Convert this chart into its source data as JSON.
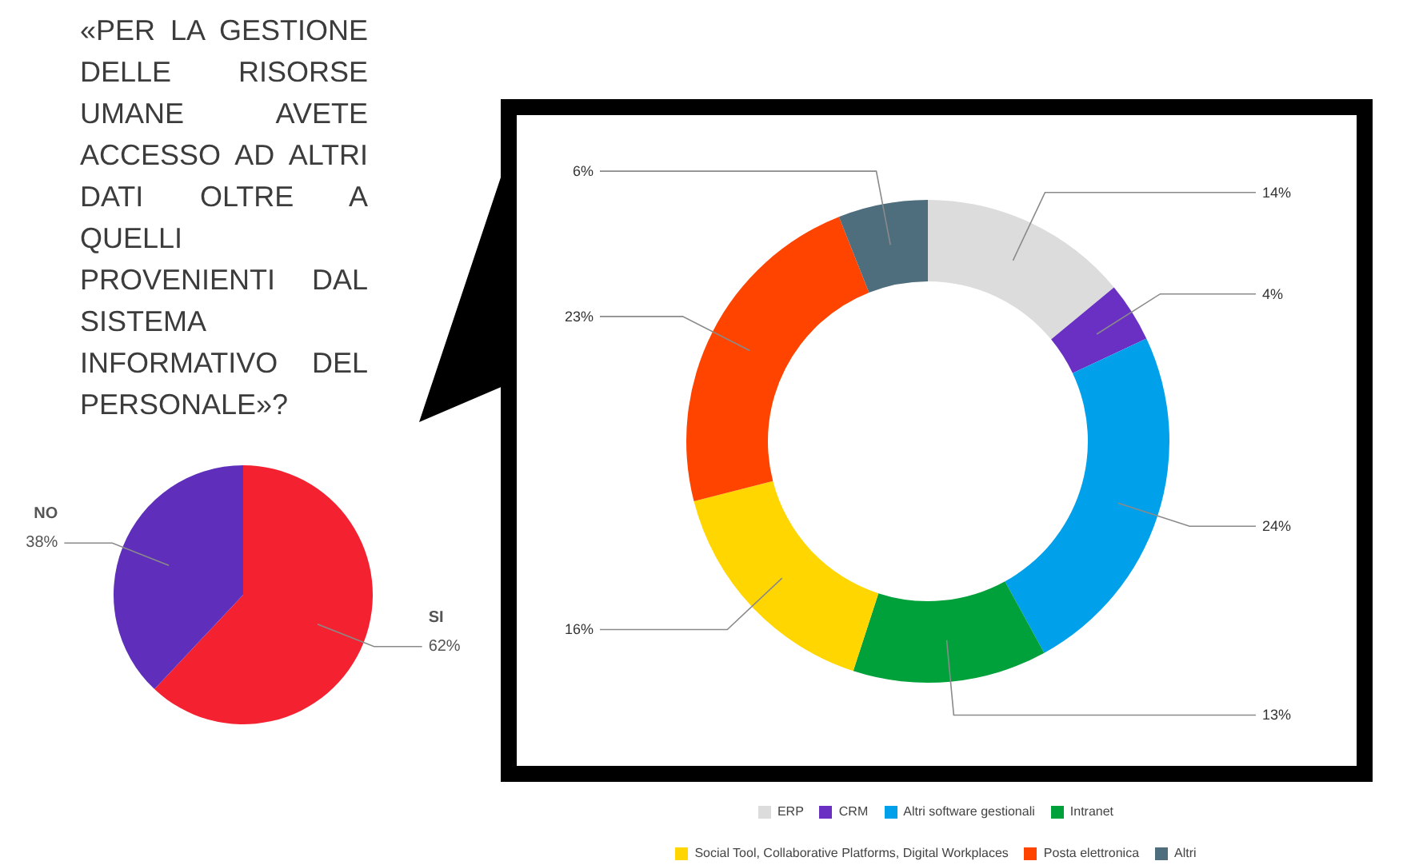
{
  "chart_data": [
    {
      "type": "pie",
      "title": "«PER LA GESTIONE DELLE RISORSE UMANE AVETE ACCESSO AD ALTRI DATI OLTRE A QUELLI PROVENIENTI DAL SISTEMA INFORMATIVO DEL PERSONALE»?",
      "categories": [
        "SI",
        "NO"
      ],
      "values": [
        62,
        38
      ],
      "colors": [
        "#f42231",
        "#5f2fbb"
      ],
      "value_labels": [
        "62%",
        "38%"
      ]
    },
    {
      "type": "donut",
      "categories": [
        "ERP",
        "CRM",
        "Altri software gestionali",
        "Intranet",
        "Social Tool, Collaborative Platforms, Digital Workplaces",
        "Posta elettronica",
        "Altri"
      ],
      "values": [
        14,
        4,
        24,
        13,
        16,
        23,
        6
      ],
      "colors": [
        "#dcdcdc",
        "#6930c3",
        "#00a0ea",
        "#00a13a",
        "#ffd600",
        "#ff4400",
        "#4e6e7d"
      ],
      "value_labels": [
        "14%",
        "4%",
        "24%",
        "13%",
        "16%",
        "23%",
        "6%"
      ],
      "legend": "bottom"
    }
  ]
}
